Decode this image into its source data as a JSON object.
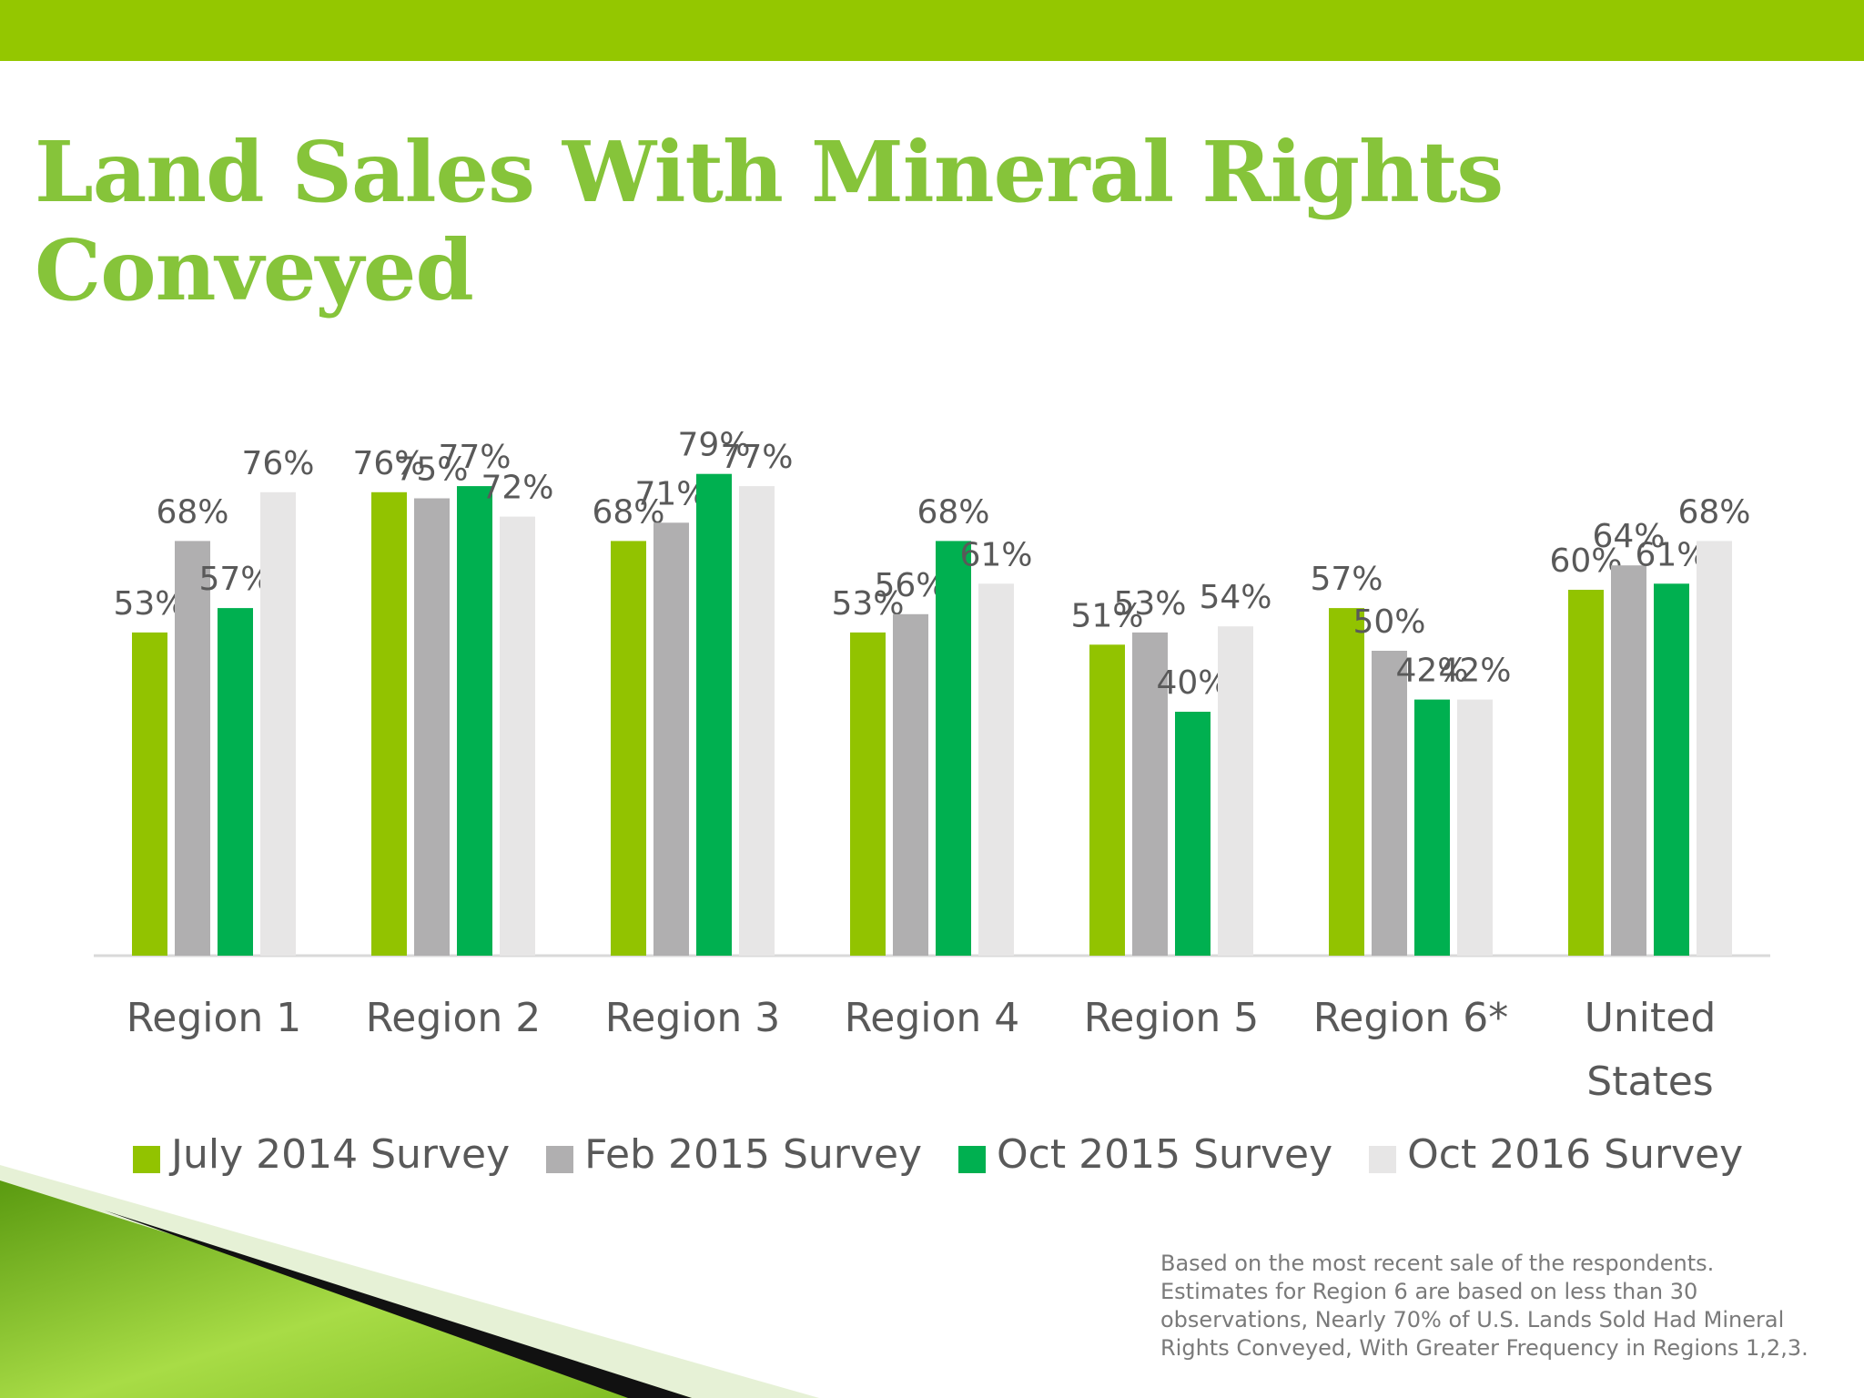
{
  "title": "Land Sales With Mineral Rights Conveyed",
  "title_lines": [
    "Land Sales With Mineral Rights",
    "Conveyed"
  ],
  "colors": {
    "top_bar": "#94c700",
    "title": "#86c43a",
    "label_text": "#595959"
  },
  "legend": {
    "placement": "bottom",
    "items": [
      {
        "label": "July 2014 Survey",
        "color": "#92c300"
      },
      {
        "label": "Feb 2015 Survey",
        "color": "#b0afb0"
      },
      {
        "label": "Oct 2015 Survey",
        "color": "#00b050"
      },
      {
        "label": "Oct 2016 Survey",
        "color": "#e7e6e6"
      }
    ]
  },
  "footnote": [
    "Based on the most recent sale of the respondents.",
    "Estimates for Region 6 are based on less than 30",
    "observations, Nearly 70% of U.S. Lands Sold Had Mineral",
    "Rights Conveyed, With Greater Frequency in Regions 1,2,3."
  ],
  "chart_data": {
    "type": "bar",
    "title": "Land Sales With Mineral Rights Conveyed",
    "xlabel": "",
    "ylabel": "",
    "ylim": [
      0,
      100
    ],
    "grid": false,
    "legend_position": "bottom",
    "value_suffix": "%",
    "categories": [
      [
        "Region 1"
      ],
      [
        "Region 2"
      ],
      [
        "Region 3"
      ],
      [
        "Region 4"
      ],
      [
        "Region 5"
      ],
      [
        "Region 6*"
      ],
      [
        "United",
        "States"
      ]
    ],
    "series": [
      {
        "name": "July 2014 Survey",
        "color": "#92c300",
        "values": [
          53,
          76,
          68,
          53,
          51,
          57,
          60
        ]
      },
      {
        "name": "Feb 2015 Survey",
        "color": "#b0afb0",
        "values": [
          68,
          75,
          71,
          56,
          53,
          50,
          64
        ]
      },
      {
        "name": "Oct 2015 Survey",
        "color": "#00b050",
        "values": [
          57,
          77,
          79,
          68,
          40,
          42,
          61
        ]
      },
      {
        "name": "Oct 2016 Survey",
        "color": "#e7e6e6",
        "values": [
          76,
          72,
          77,
          61,
          54,
          42,
          68
        ]
      }
    ]
  }
}
